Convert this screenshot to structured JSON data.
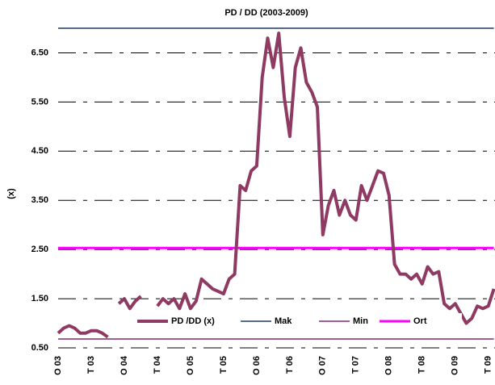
{
  "chart_data": {
    "type": "line",
    "title": "PD / DD (2003-2009)",
    "y_label": "(x)",
    "categories": [
      "O 03",
      null,
      null,
      null,
      null,
      null,
      "T 03",
      null,
      null,
      null,
      null,
      null,
      "O 04",
      null,
      null,
      null,
      null,
      null,
      "T 04",
      null,
      null,
      null,
      null,
      null,
      "O 05",
      null,
      null,
      null,
      null,
      null,
      "T 05",
      null,
      null,
      null,
      null,
      null,
      "O 06",
      null,
      null,
      null,
      null,
      null,
      "T 06",
      null,
      null,
      null,
      null,
      null,
      "O 07",
      null,
      null,
      null,
      null,
      null,
      "T 07",
      null,
      null,
      null,
      null,
      null,
      "O 08",
      null,
      null,
      null,
      null,
      null,
      "T 08",
      null,
      null,
      null,
      null,
      null,
      "O 09",
      null,
      null,
      null,
      null,
      null,
      "T 09",
      null
    ],
    "series": [
      {
        "name": "PD /DD (x)",
        "color": "#8e3a62",
        "width": 4,
        "values": [
          0.8,
          0.9,
          0.95,
          0.9,
          0.8,
          0.8,
          0.85,
          0.85,
          0.8,
          0.72,
          null,
          1.4,
          1.5,
          1.3,
          1.45,
          1.55,
          null,
          null,
          1.35,
          1.5,
          1.4,
          1.5,
          1.3,
          1.6,
          1.3,
          1.45,
          1.9,
          1.8,
          1.7,
          1.65,
          1.6,
          1.9,
          2.0,
          3.8,
          3.7,
          4.1,
          4.2,
          6.0,
          6.8,
          6.2,
          6.9,
          5.6,
          4.8,
          6.2,
          6.6,
          5.9,
          5.7,
          5.4,
          2.8,
          3.4,
          3.7,
          3.2,
          3.5,
          3.2,
          3.1,
          3.8,
          3.5,
          3.8,
          4.1,
          4.05,
          3.6,
          2.2,
          2.0,
          2.0,
          1.9,
          2.0,
          1.8,
          2.15,
          2.0,
          2.05,
          1.4,
          1.3,
          1.4,
          1.2,
          1.0,
          1.1,
          1.35,
          1.3,
          1.35,
          1.7
        ]
      },
      {
        "name": "Mak",
        "color": "#1f3864",
        "width": 1.5,
        "values": [
          7.0,
          7.0,
          7.0,
          7.0,
          7.0,
          7.0,
          7.0,
          7.0,
          7.0,
          7.0,
          7.0,
          7.0,
          7.0,
          7.0,
          7.0,
          7.0,
          7.0,
          7.0,
          7.0,
          7.0,
          7.0,
          7.0,
          7.0,
          7.0,
          7.0,
          7.0,
          7.0,
          7.0,
          7.0,
          7.0,
          7.0,
          7.0,
          7.0,
          7.0,
          7.0,
          7.0,
          7.0,
          7.0,
          7.0,
          7.0,
          7.0,
          7.0,
          7.0,
          7.0,
          7.0,
          7.0,
          7.0,
          7.0,
          7.0,
          7.0,
          7.0,
          7.0,
          7.0,
          7.0,
          7.0,
          7.0,
          7.0,
          7.0,
          7.0,
          7.0,
          7.0,
          7.0,
          7.0,
          7.0,
          7.0,
          7.0,
          7.0,
          7.0,
          7.0,
          7.0,
          7.0,
          7.0,
          7.0,
          7.0,
          7.0,
          7.0,
          7.0,
          7.0,
          7.0,
          7.0
        ]
      },
      {
        "name": "Min",
        "color": "#7b2a7b",
        "width": 1.5,
        "values": [
          0.68,
          0.68,
          0.68,
          0.68,
          0.68,
          0.68,
          0.68,
          0.68,
          0.68,
          0.68,
          0.68,
          0.68,
          0.68,
          0.68,
          0.68,
          0.68,
          0.68,
          0.68,
          0.68,
          0.68,
          0.68,
          0.68,
          0.68,
          0.68,
          0.68,
          0.68,
          0.68,
          0.68,
          0.68,
          0.68,
          0.68,
          0.68,
          0.68,
          0.68,
          0.68,
          0.68,
          0.68,
          0.68,
          0.68,
          0.68,
          0.68,
          0.68,
          0.68,
          0.68,
          0.68,
          0.68,
          0.68,
          0.68,
          0.68,
          0.68,
          0.68,
          0.68,
          0.68,
          0.68,
          0.68,
          0.68,
          0.68,
          0.68,
          0.68,
          0.68,
          0.68,
          0.68,
          0.68,
          0.68,
          0.68,
          0.68,
          0.68,
          0.68,
          0.68,
          0.68,
          0.68,
          0.68,
          0.68,
          0.68,
          0.68,
          0.68,
          0.68,
          0.68,
          0.68,
          0.68
        ]
      },
      {
        "name": "Ort",
        "color": "#ff00ff",
        "width": 3,
        "values": [
          2.53,
          2.53,
          2.53,
          2.53,
          2.53,
          2.53,
          2.53,
          2.53,
          2.53,
          2.53,
          2.53,
          2.53,
          2.53,
          2.53,
          2.53,
          2.53,
          2.53,
          2.53,
          2.53,
          2.53,
          2.53,
          2.53,
          2.53,
          2.53,
          2.53,
          2.53,
          2.53,
          2.53,
          2.53,
          2.53,
          2.53,
          2.53,
          2.53,
          2.53,
          2.53,
          2.53,
          2.53,
          2.53,
          2.53,
          2.53,
          2.53,
          2.53,
          2.53,
          2.53,
          2.53,
          2.53,
          2.53,
          2.53,
          2.53,
          2.53,
          2.53,
          2.53,
          2.53,
          2.53,
          2.53,
          2.53,
          2.53,
          2.53,
          2.53,
          2.53,
          2.53,
          2.53,
          2.53,
          2.53,
          2.53,
          2.53,
          2.53,
          2.53,
          2.53,
          2.53,
          2.53,
          2.53,
          2.53,
          2.53,
          2.53,
          2.53,
          2.53,
          2.53,
          2.53,
          2.53
        ]
      }
    ],
    "ylim": [
      0.5,
      7.0
    ],
    "yticks": [
      {
        "value": 0.5,
        "label": "0.50"
      },
      {
        "value": 1.5,
        "label": "1.50"
      },
      {
        "value": 2.5,
        "label": "2.50"
      },
      {
        "value": 3.5,
        "label": "3.50"
      },
      {
        "value": 4.5,
        "label": "4.50"
      },
      {
        "value": 5.5,
        "label": "5.50"
      },
      {
        "value": 6.5,
        "label": "6.50"
      }
    ],
    "grid": true,
    "legend": "bottom"
  }
}
